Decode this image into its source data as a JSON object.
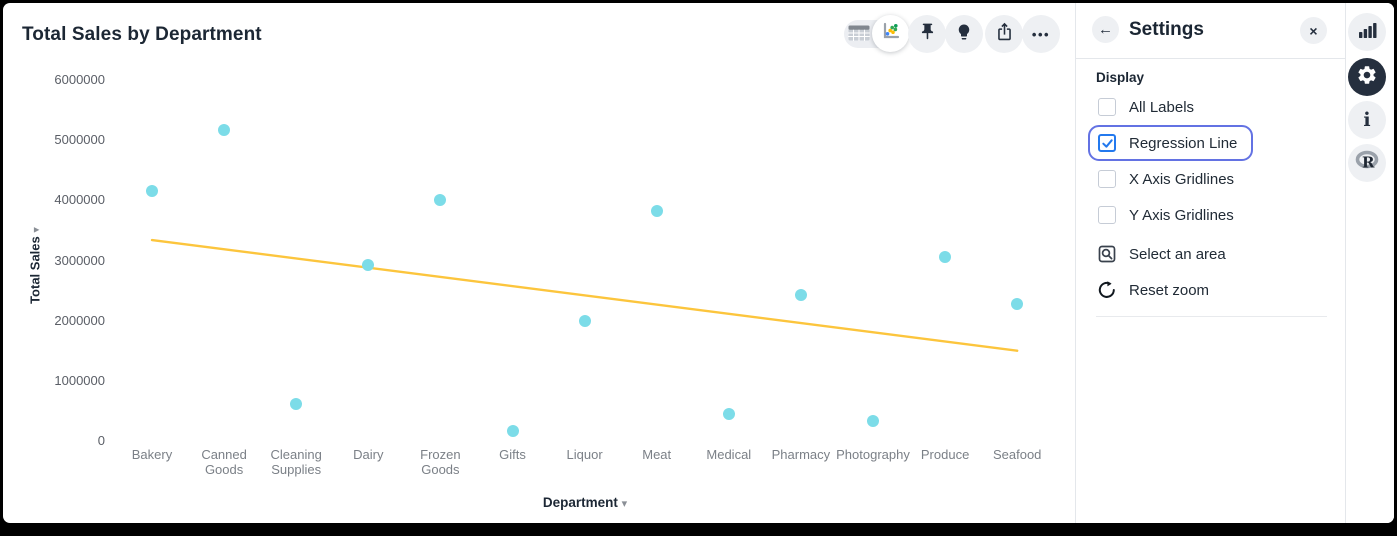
{
  "chart_data": {
    "type": "scatter",
    "title": "Total Sales by Department",
    "xlabel": "Department",
    "ylabel": "Total Sales",
    "categories": [
      "Bakery",
      "Canned Goods",
      "Cleaning Supplies",
      "Dairy",
      "Frozen Goods",
      "Gifts",
      "Liquor",
      "Meat",
      "Medical",
      "Pharmacy",
      "Photography",
      "Produce",
      "Seafood"
    ],
    "values": [
      4150000,
      5170000,
      620000,
      2920000,
      4000000,
      170000,
      2000000,
      3820000,
      450000,
      2430000,
      330000,
      3060000,
      2280000
    ],
    "ylim": [
      0,
      6000000
    ],
    "yticks": [
      0,
      1000000,
      2000000,
      3000000,
      4000000,
      5000000,
      6000000
    ],
    "grid": false,
    "legend_position": "none",
    "point_color": "#7cdce8",
    "regression_line": {
      "visible": true,
      "color": "#fcc53d",
      "start_value": 3340000,
      "end_value": 1500000
    }
  },
  "toolbar": {
    "active_view": "scatter",
    "glyphs": {
      "ellipsis": "•••"
    },
    "icons": [
      "table-view-icon",
      "scatter-view-icon",
      "pin-icon",
      "insights-bulb-icon",
      "export-icon",
      "more-options-icon"
    ]
  },
  "settings_panel": {
    "title": "Settings",
    "glyphs": {
      "back_arrow": "←",
      "close": "×"
    },
    "section_display": "Display",
    "checkboxes": [
      {
        "label": "All Labels",
        "checked": false,
        "focused": false
      },
      {
        "label": "Regression Line",
        "checked": true,
        "focused": true
      },
      {
        "label": "X Axis Gridlines",
        "checked": false,
        "focused": false
      },
      {
        "label": "Y Axis Gridlines",
        "checked": false,
        "focused": false
      }
    ],
    "actions": [
      {
        "label": "Select an area",
        "icon": "area-select-icon"
      },
      {
        "label": "Reset zoom",
        "icon": "reset-zoom-icon"
      }
    ]
  },
  "sidebar": {
    "icons": [
      "bar-chart-icon",
      "settings-gear-icon",
      "info-icon",
      "r-logo-icon"
    ],
    "active": "settings-gear-icon"
  },
  "axis_carets": {
    "x": "▾",
    "y": "▾"
  },
  "colors": {
    "accent_blue": "#2379ee",
    "focus_ring": "#6372e3",
    "dark_icon": "#252f3e",
    "point": "#7cdce8",
    "regression": "#fcc53d"
  }
}
